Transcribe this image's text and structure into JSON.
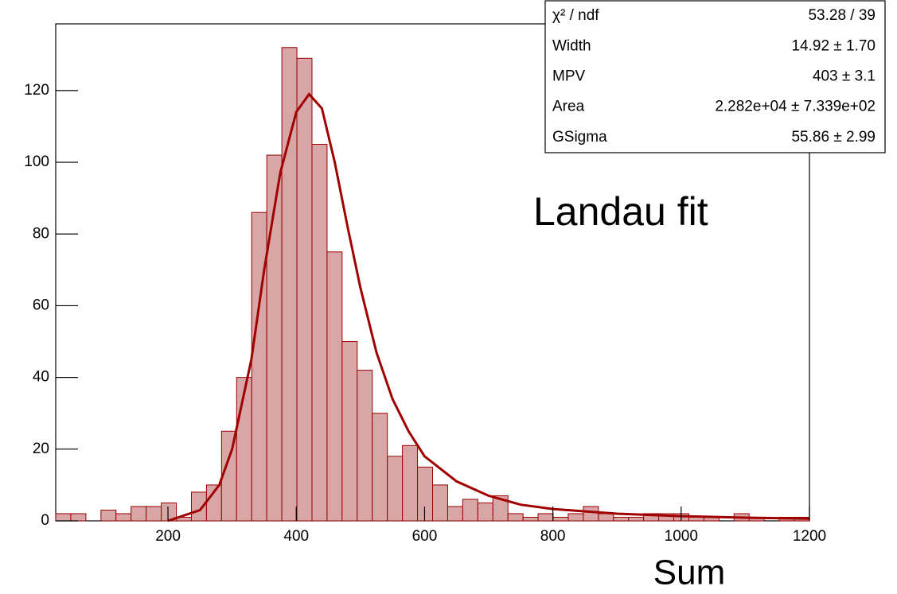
{
  "chart_data": {
    "type": "histogram",
    "bins": [
      25,
      48.5,
      72,
      95.5,
      119,
      142.5,
      166,
      189.5,
      213,
      236.5,
      260,
      283.5,
      307,
      330.5,
      354,
      377.5,
      401,
      424.5,
      448,
      471.5,
      495,
      518.5,
      542,
      565.5,
      589,
      612.5,
      636,
      659.5,
      683,
      706.5,
      730,
      753.5,
      777,
      800.5,
      824,
      847.5,
      871,
      894.5,
      918,
      941.5,
      965,
      988.5,
      1012,
      1035.5,
      1059,
      1082.5,
      1106,
      1129.5,
      1153,
      1176.5,
      1200
    ],
    "counts": [
      2,
      2,
      0,
      3,
      2,
      4,
      4,
      5,
      1,
      8,
      10,
      25,
      40,
      86,
      102,
      132,
      129,
      105,
      75,
      50,
      42,
      30,
      18,
      21,
      15,
      10,
      4,
      6,
      5,
      7,
      2,
      1,
      2,
      1,
      2,
      4,
      2,
      1,
      1,
      2,
      2,
      2,
      1,
      1,
      0,
      2,
      1,
      0,
      1,
      1
    ],
    "color": "#d9a6a7",
    "edge_color": "#990000",
    "fit": {
      "x": [
        200,
        250,
        280,
        300,
        330,
        350,
        375,
        400,
        420,
        440,
        460,
        480,
        500,
        525,
        550,
        575,
        600,
        650,
        700,
        750,
        800,
        900,
        1000,
        1100,
        1200
      ],
      "values": [
        0,
        3,
        10,
        20,
        45,
        70,
        97,
        114,
        119,
        115,
        100,
        82,
        65,
        47,
        34,
        25,
        18,
        11,
        7,
        4.5,
        3.3,
        2,
        1.3,
        0.9,
        0.6
      ],
      "color": "#a00000"
    },
    "xlim": [
      25,
      1200
    ],
    "ylim": [
      0,
      138.6
    ],
    "xticks": [
      200,
      400,
      600,
      800,
      1000,
      1200
    ],
    "yticks": [
      0,
      20,
      40,
      60,
      80,
      100,
      120
    ],
    "x_label": "Sum",
    "annotation": "Landau fit",
    "stats": [
      [
        "χ² / ndf",
        "53.28 / 39"
      ],
      [
        "Width",
        "14.92 ± 1.70"
      ],
      [
        "MPV",
        "403 ± 3.1"
      ],
      [
        "Area",
        "2.282e+04 ± 7.339e+02"
      ],
      [
        "GSigma",
        "55.86 ± 2.99"
      ]
    ]
  }
}
